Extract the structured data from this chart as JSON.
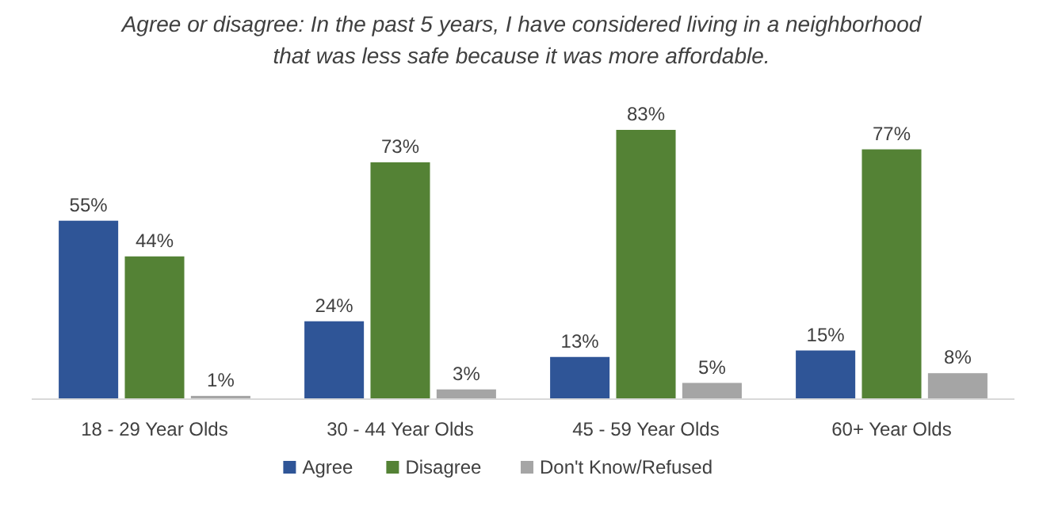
{
  "chart_data": {
    "type": "bar",
    "title": "Agree or disagree: In the past 5 years, I have considered living in a neighborhood that was less safe because it was more affordable.",
    "categories": [
      "18 - 29 Year Olds",
      "30 - 44 Year Olds",
      "45 - 59 Year Olds",
      "60+ Year Olds"
    ],
    "series": [
      {
        "name": "Agree",
        "color": "#2f5597",
        "values": [
          55,
          24,
          13,
          15
        ],
        "value_labels": [
          "55%",
          "24%",
          "13%",
          "15%"
        ]
      },
      {
        "name": "Disagree",
        "color": "#548235",
        "values": [
          44,
          73,
          83,
          77
        ],
        "value_labels": [
          "44%",
          "73%",
          "83%",
          "77%"
        ]
      },
      {
        "name": "Don't Know/Refused",
        "color": "#a5a5a5",
        "values": [
          1,
          3,
          5,
          8
        ],
        "value_labels": [
          "1%",
          "3%",
          "5%",
          "8%"
        ]
      }
    ],
    "legend": "bottom"
  }
}
